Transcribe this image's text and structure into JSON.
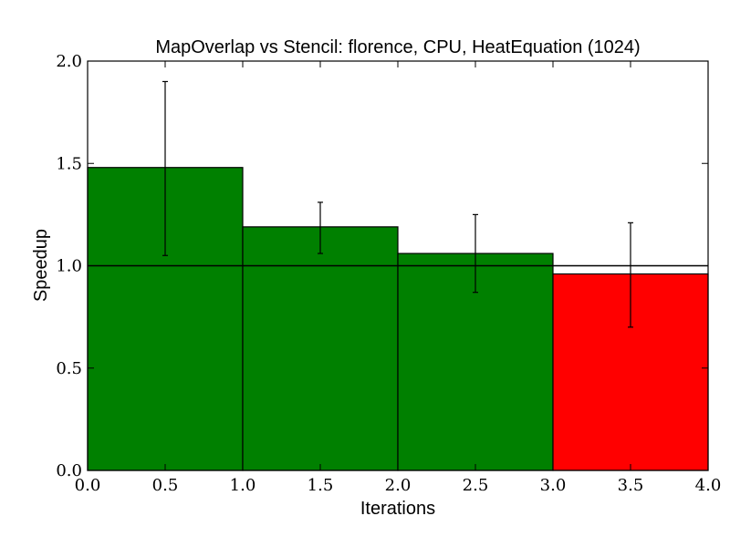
{
  "chart_data": {
    "type": "bar",
    "title": "MapOverlap vs Stencil: florence, CPU, HeatEquation (1024)",
    "xlabel": "Iterations",
    "ylabel": "Speedup",
    "xlim": [
      0,
      4
    ],
    "ylim": [
      0,
      2
    ],
    "xticks": [
      "0.0",
      "0.5",
      "1.0",
      "1.5",
      "2.0",
      "2.5",
      "3.0",
      "3.5",
      "4.0"
    ],
    "yticks": [
      "0.0",
      "0.5",
      "1.0",
      "1.5",
      "2.0"
    ],
    "grid": false,
    "bars": [
      {
        "x0": 0,
        "x1": 1,
        "value": 1.48,
        "err_low": 1.05,
        "err_high": 1.9,
        "color": "#008000"
      },
      {
        "x0": 1,
        "x1": 2,
        "value": 1.19,
        "err_low": 1.06,
        "err_high": 1.31,
        "color": "#008000"
      },
      {
        "x0": 2,
        "x1": 3,
        "value": 1.06,
        "err_low": 0.87,
        "err_high": 1.25,
        "color": "#008000"
      },
      {
        "x0": 3,
        "x1": 4,
        "value": 0.96,
        "err_low": 0.7,
        "err_high": 1.21,
        "color": "#ff0000"
      }
    ],
    "reference_line": {
      "y": 1.0,
      "color": "#000000"
    }
  }
}
